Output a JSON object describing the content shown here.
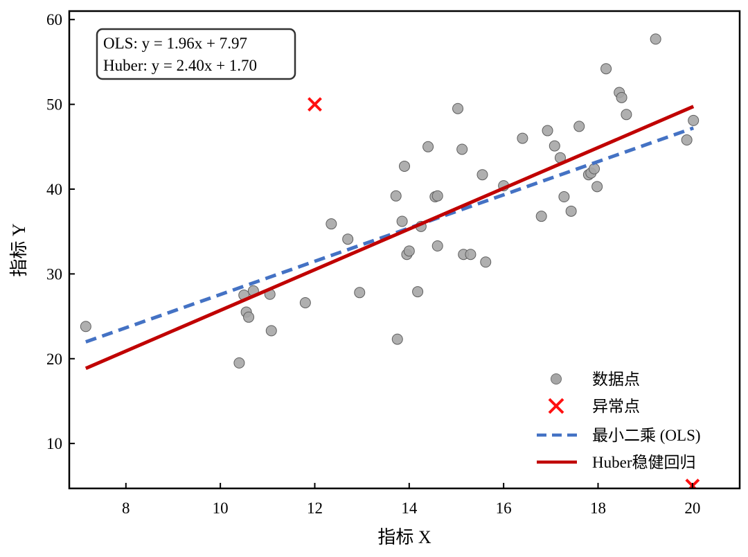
{
  "chart_data": {
    "type": "scatter",
    "xlabel": "指标 X",
    "ylabel": "指标 Y",
    "xlim": [
      6.8,
      21.0
    ],
    "ylim": [
      4.7,
      61.0
    ],
    "xticks": [
      8,
      10,
      12,
      14,
      16,
      18,
      20
    ],
    "yticks": [
      10,
      20,
      30,
      40,
      50,
      60
    ],
    "grid": false,
    "legend_position": "bottom-right",
    "annotation": [
      "OLS: y = 1.96x + 7.97",
      "Huber: y = 2.40x + 1.70"
    ],
    "series": [
      {
        "name": "数据点",
        "kind": "scatter",
        "color": "#a6a6a6",
        "points": [
          [
            7.15,
            23.8
          ],
          [
            10.4,
            19.5
          ],
          [
            10.5,
            27.5
          ],
          [
            10.55,
            25.5
          ],
          [
            10.6,
            24.9
          ],
          [
            10.7,
            28.0
          ],
          [
            11.05,
            27.6
          ],
          [
            11.08,
            23.3
          ],
          [
            11.8,
            26.6
          ],
          [
            12.35,
            35.9
          ],
          [
            12.7,
            34.1
          ],
          [
            12.95,
            27.8
          ],
          [
            13.72,
            39.2
          ],
          [
            13.75,
            22.3
          ],
          [
            13.85,
            36.2
          ],
          [
            13.9,
            42.7
          ],
          [
            13.95,
            32.3
          ],
          [
            14.0,
            32.7
          ],
          [
            14.18,
            27.9
          ],
          [
            14.25,
            35.6
          ],
          [
            14.4,
            45.0
          ],
          [
            14.55,
            39.1
          ],
          [
            14.6,
            39.2
          ],
          [
            14.6,
            33.3
          ],
          [
            15.03,
            49.5
          ],
          [
            15.12,
            44.7
          ],
          [
            15.15,
            32.3
          ],
          [
            15.3,
            32.3
          ],
          [
            15.55,
            41.7
          ],
          [
            15.62,
            31.4
          ],
          [
            16.0,
            40.4
          ],
          [
            16.4,
            46.0
          ],
          [
            16.8,
            36.8
          ],
          [
            16.93,
            46.9
          ],
          [
            17.08,
            45.1
          ],
          [
            17.2,
            43.7
          ],
          [
            17.28,
            39.1
          ],
          [
            17.43,
            37.4
          ],
          [
            17.6,
            47.4
          ],
          [
            17.8,
            41.7
          ],
          [
            17.85,
            41.9
          ],
          [
            17.92,
            42.4
          ],
          [
            17.98,
            40.3
          ],
          [
            18.17,
            54.2
          ],
          [
            18.45,
            51.4
          ],
          [
            18.5,
            50.8
          ],
          [
            18.6,
            48.8
          ],
          [
            19.22,
            57.7
          ],
          [
            19.88,
            45.8
          ],
          [
            20.02,
            48.1
          ]
        ]
      },
      {
        "name": "异常点",
        "kind": "marker-x",
        "color": "#ff1111",
        "points": [
          [
            12.0,
            50.0
          ],
          [
            20.0,
            5.0
          ]
        ]
      },
      {
        "name": "最小二乘 (OLS)",
        "kind": "dashed-line",
        "color": "#4472c4",
        "slope": 1.96,
        "intercept": 7.97,
        "x_range": [
          7.15,
          20.02
        ]
      },
      {
        "name": "Huber稳健回归",
        "kind": "solid-line",
        "color": "#c00000",
        "slope": 2.4,
        "intercept": 1.7,
        "x_range": [
          7.15,
          20.02
        ]
      }
    ]
  }
}
